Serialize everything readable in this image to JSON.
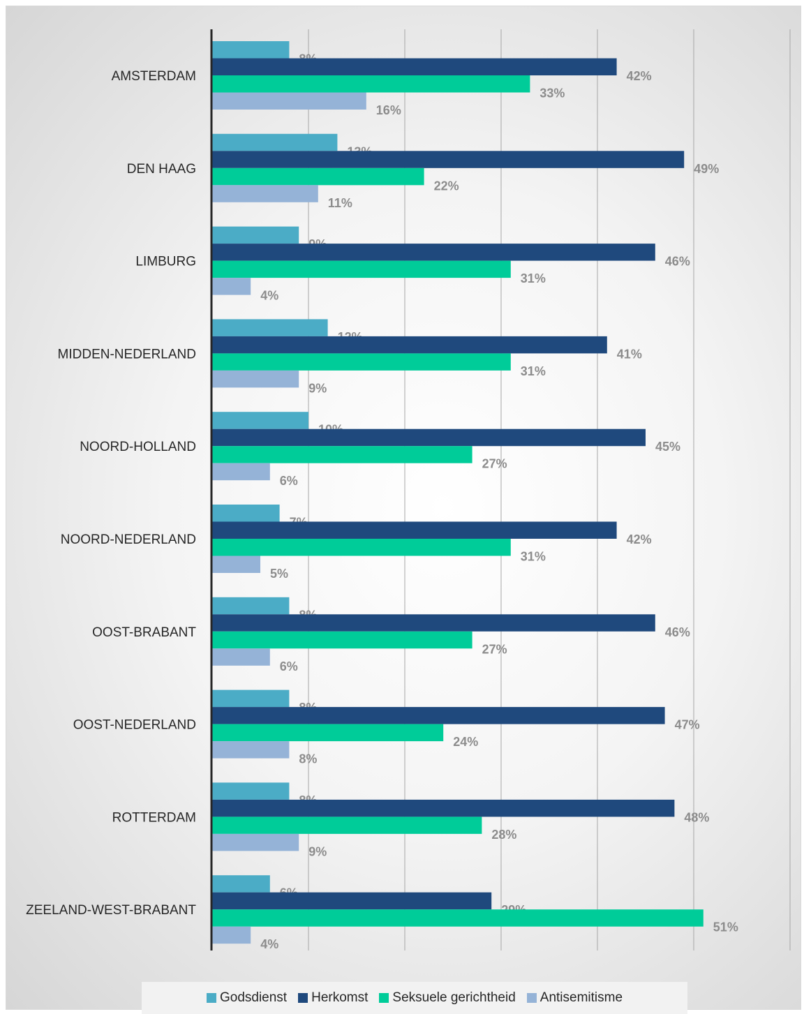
{
  "chart_data": {
    "type": "bar",
    "orientation": "horizontal",
    "categories": [
      "AMSTERDAM",
      "DEN HAAG",
      "LIMBURG",
      "MIDDEN-NEDERLAND",
      "NOORD-HOLLAND",
      "NOORD-NEDERLAND",
      "OOST-BRABANT",
      "OOST-NEDERLAND",
      "ROTTERDAM",
      "ZEELAND-WEST-BRABANT"
    ],
    "series": [
      {
        "name": "Godsdienst",
        "color": "#4bacc6",
        "values": [
          8,
          13,
          9,
          12,
          10,
          7,
          8,
          8,
          8,
          6
        ],
        "labels": [
          "8%",
          "13%",
          "9%",
          "12%",
          "10%",
          "7%",
          "8%",
          "8%",
          "8%",
          "6%"
        ]
      },
      {
        "name": "Herkomst",
        "color": "#1f497d",
        "values": [
          42,
          49,
          46,
          41,
          45,
          42,
          46,
          47,
          48,
          29
        ],
        "labels": [
          "42%",
          "49%",
          "46%",
          "41%",
          "45%",
          "42%",
          "46%",
          "47%",
          "48%",
          "29%"
        ]
      },
      {
        "name": "Seksuele gerichtheid",
        "color": "#00cc99",
        "values": [
          33,
          22,
          31,
          31,
          27,
          31,
          27,
          24,
          28,
          51
        ],
        "labels": [
          "33%",
          "22%",
          "31%",
          "31%",
          "27%",
          "31%",
          "27%",
          "24%",
          "28%",
          "51%"
        ]
      },
      {
        "name": "Antisemitisme",
        "color": "#95b3d7",
        "values": [
          16,
          11,
          4,
          9,
          6,
          5,
          6,
          8,
          9,
          4
        ],
        "labels": [
          "16%",
          "11%",
          "4%",
          "9%",
          "6%",
          "5%",
          "6%",
          "8%",
          "9%",
          "4%"
        ]
      }
    ],
    "xlim": [
      0,
      60
    ],
    "grid": true,
    "legend_position": "bottom",
    "title": "",
    "xlabel": "",
    "ylabel": ""
  }
}
